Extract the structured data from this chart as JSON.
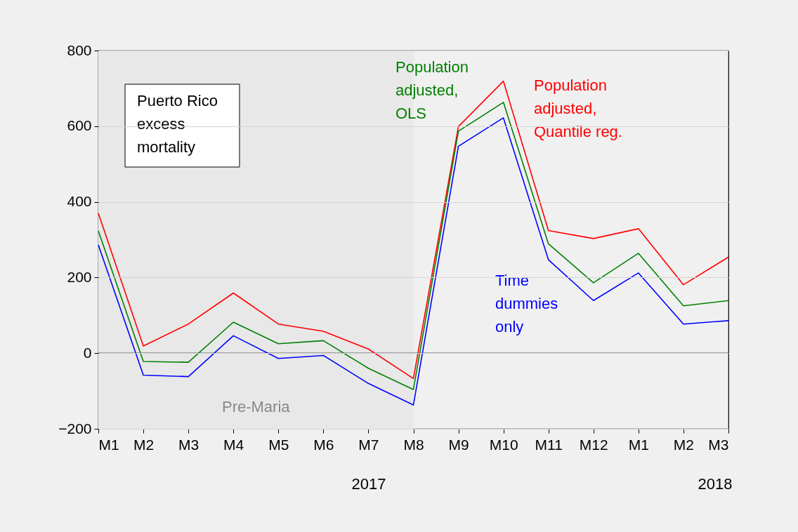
{
  "chart_data": {
    "type": "line",
    "categories": [
      "M1",
      "M2",
      "M3",
      "M4",
      "M5",
      "M6",
      "M7",
      "M8",
      "M9",
      "M10",
      "M11",
      "M12",
      "M1",
      "M2",
      "M3"
    ],
    "series": [
      {
        "name": "Population adjusted, Quantile reg.",
        "color": "#ff0000",
        "values": [
          370,
          19,
          77,
          159,
          77,
          58,
          11,
          -67,
          599,
          719,
          324,
          303,
          329,
          181,
          254
        ]
      },
      {
        "name": "Population adjusted, OLS",
        "color": "#008000",
        "values": [
          323,
          -22,
          -24,
          82,
          25,
          33,
          -40,
          -96,
          587,
          663,
          289,
          186,
          264,
          125,
          139
        ]
      },
      {
        "name": "Time dummies only",
        "color": "#0000ff",
        "values": [
          286,
          -58,
          -62,
          46,
          -14,
          -6,
          -80,
          -137,
          547,
          622,
          247,
          139,
          212,
          77,
          86
        ]
      }
    ],
    "ylim": [
      -200,
      800
    ],
    "yticks": [
      -200,
      0,
      200,
      400,
      600,
      800
    ],
    "grid": "y",
    "legend": false,
    "ref_lines": [
      {
        "axis": "y",
        "value": 0,
        "color": "#000000"
      }
    ],
    "bands": [
      {
        "axis": "x",
        "from": "M1",
        "to": "M8",
        "label": "Pre-Maria",
        "color": "#e8e8e8"
      }
    ],
    "annotations": [
      "Puerto Rico excess mortality",
      "2017",
      "2018"
    ]
  }
}
